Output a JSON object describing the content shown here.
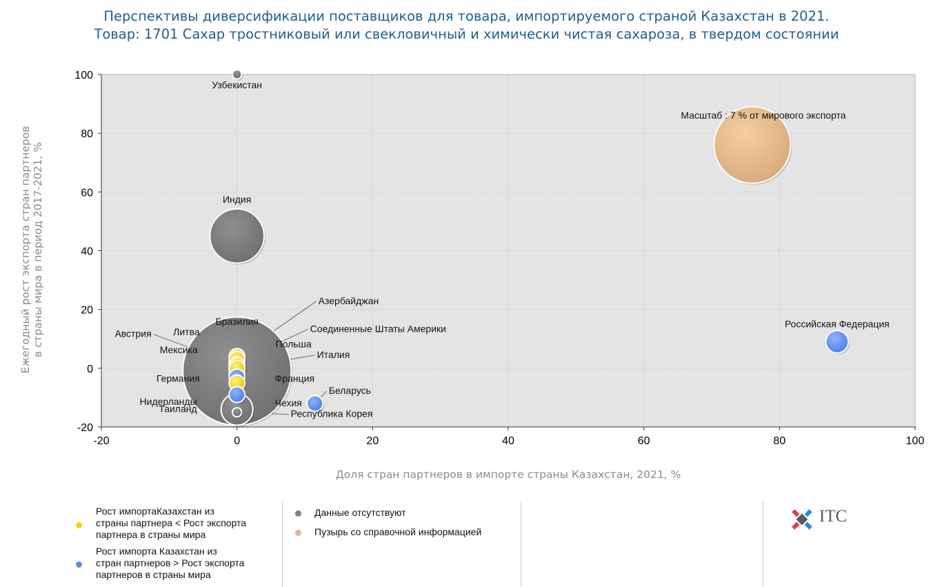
{
  "chart_data": {
    "type": "scatter",
    "title": "Перспективы диверсификации поставщиков для товара, импортируемого страной Казахстан в 2021.",
    "subtitle": "Товар: 1701 Сахар тростниковый или свекловичный и химически чистая сахароза, в твердом состоянии",
    "xlabel": "Доля стран партнеров в импорте страны Казахстан, 2021, %",
    "ylabel_line1": "Ежегодный рост экспорта стран партнеров",
    "ylabel_line2": "в страны мира в период 2017-2021, %",
    "xlim": [
      -20,
      100
    ],
    "ylim": [
      -20,
      100
    ],
    "x_ticks": [
      "-20",
      "0",
      "20",
      "40",
      "60",
      "80",
      "100"
    ],
    "y_ticks": [
      "100",
      "80",
      "60",
      "40",
      "20",
      "0",
      "-20"
    ],
    "grid": true,
    "legend_position": "bottom",
    "colors": {
      "yellow": "#f3d21a",
      "blue": "#5b8ff0",
      "gray": "#808080",
      "reference": "#e2b98a"
    },
    "points": [
      {
        "label": "Узбекистан",
        "x": 0,
        "y": 100,
        "size": 0.1,
        "group": "gray"
      },
      {
        "label": "Индия",
        "x": 0,
        "y": 45,
        "size": 3.5,
        "group": "gray"
      },
      {
        "label": "Бразилия",
        "x": 0,
        "y": -1,
        "size": 14,
        "group": "gray"
      },
      {
        "label": "Таиланд",
        "x": 0,
        "y": -14,
        "size": 1.2,
        "group": "gray"
      },
      {
        "label": "Республика Корея",
        "x": 0,
        "y": -15,
        "size": 0.1,
        "group": "gray"
      },
      {
        "label": "Азербайджан",
        "x": 0,
        "y": 4,
        "size": 0.3,
        "group": "yellow"
      },
      {
        "label": "Соединенные Штаты Америки",
        "x": 0,
        "y": 2,
        "size": 0.3,
        "group": "yellow"
      },
      {
        "label": "Польша",
        "x": 0,
        "y": 1,
        "size": 0.3,
        "group": "yellow"
      },
      {
        "label": "Италия",
        "x": 0,
        "y": 0,
        "size": 0.3,
        "group": "yellow"
      },
      {
        "label": "Франция",
        "x": 0,
        "y": -2,
        "size": 0.3,
        "group": "yellow"
      },
      {
        "label": "Литва",
        "x": 0,
        "y": 3,
        "size": 0.3,
        "group": "yellow"
      },
      {
        "label": "Австрия",
        "x": 0,
        "y": 1,
        "size": 0.3,
        "group": "yellow"
      },
      {
        "label": "Мексика",
        "x": 0,
        "y": 0,
        "size": 0.3,
        "group": "yellow"
      },
      {
        "label": "Германия",
        "x": 0,
        "y": -3,
        "size": 0.3,
        "group": "blue"
      },
      {
        "label": "Нидерланды",
        "x": 0,
        "y": -5,
        "size": 0.3,
        "group": "yellow"
      },
      {
        "label": "Чехия",
        "x": 0,
        "y": -9,
        "size": 0.3,
        "group": "blue"
      },
      {
        "label": "Беларусь",
        "x": 11.5,
        "y": -12,
        "size": 0.3,
        "group": "blue"
      },
      {
        "label": "Российская Федерация",
        "x": 88.5,
        "y": 9,
        "size": 0.6,
        "group": "blue"
      }
    ],
    "reference_bubble": {
      "label": "Масштаб : 7 % от мирового экспорта",
      "x": 76,
      "y": 76,
      "size": 7
    }
  },
  "legend": {
    "yellow_label": [
      "Рост импортаКазахстан  из",
      "страны партнера < Рост экспорта",
      "партнера в страны мира"
    ],
    "blue_label": [
      "Рост импорта Казахстан из",
      "стран партнеров > Рост экспорта",
      "партнеров в страны мира"
    ],
    "gray_label": "Данные отсутствуют",
    "reference_label": "Пузырь со справочной информацией"
  },
  "logo": {
    "text": "ITC"
  }
}
